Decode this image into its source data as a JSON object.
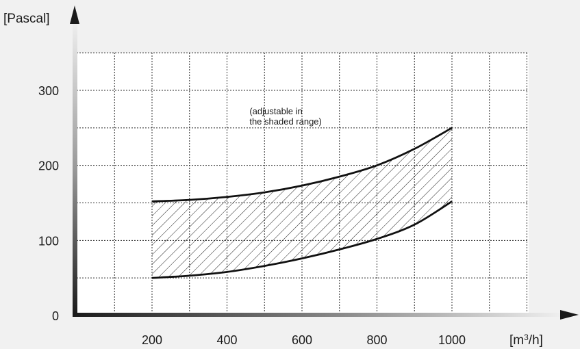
{
  "chart_data": {
    "type": "area",
    "ylabel": "[Pascal]",
    "xlabel_base": "[m",
    "xlabel_sup": "3",
    "xlabel_tail": "/h]",
    "x_ticks": [
      "200",
      "400",
      "600",
      "800",
      "1000"
    ],
    "y_ticks": [
      "0",
      "100",
      "200",
      "300"
    ],
    "xlim": [
      0,
      1200
    ],
    "ylim": [
      0,
      350
    ],
    "grid": true,
    "annotation_lines": [
      "(adjustable in",
      "the shaded range)"
    ],
    "annotation_at": {
      "x": 460,
      "y": 268
    },
    "series": [
      {
        "x": [
          200,
          300,
          400,
          500,
          600,
          700,
          800,
          900,
          1000
        ],
        "values": [
          152,
          154,
          158,
          164,
          173,
          185,
          200,
          222,
          250
        ]
      },
      {
        "x": [
          200,
          300,
          400,
          500,
          600,
          700,
          800,
          900,
          1000
        ],
        "values": [
          50,
          53,
          58,
          66,
          76,
          88,
          102,
          121,
          152
        ]
      }
    ],
    "shaded_between": [
      0,
      1
    ],
    "colors": {
      "axis": "#1a1a1a",
      "grid": "#2a2a2a",
      "curve": "#111111",
      "hatch": "#222222"
    }
  }
}
